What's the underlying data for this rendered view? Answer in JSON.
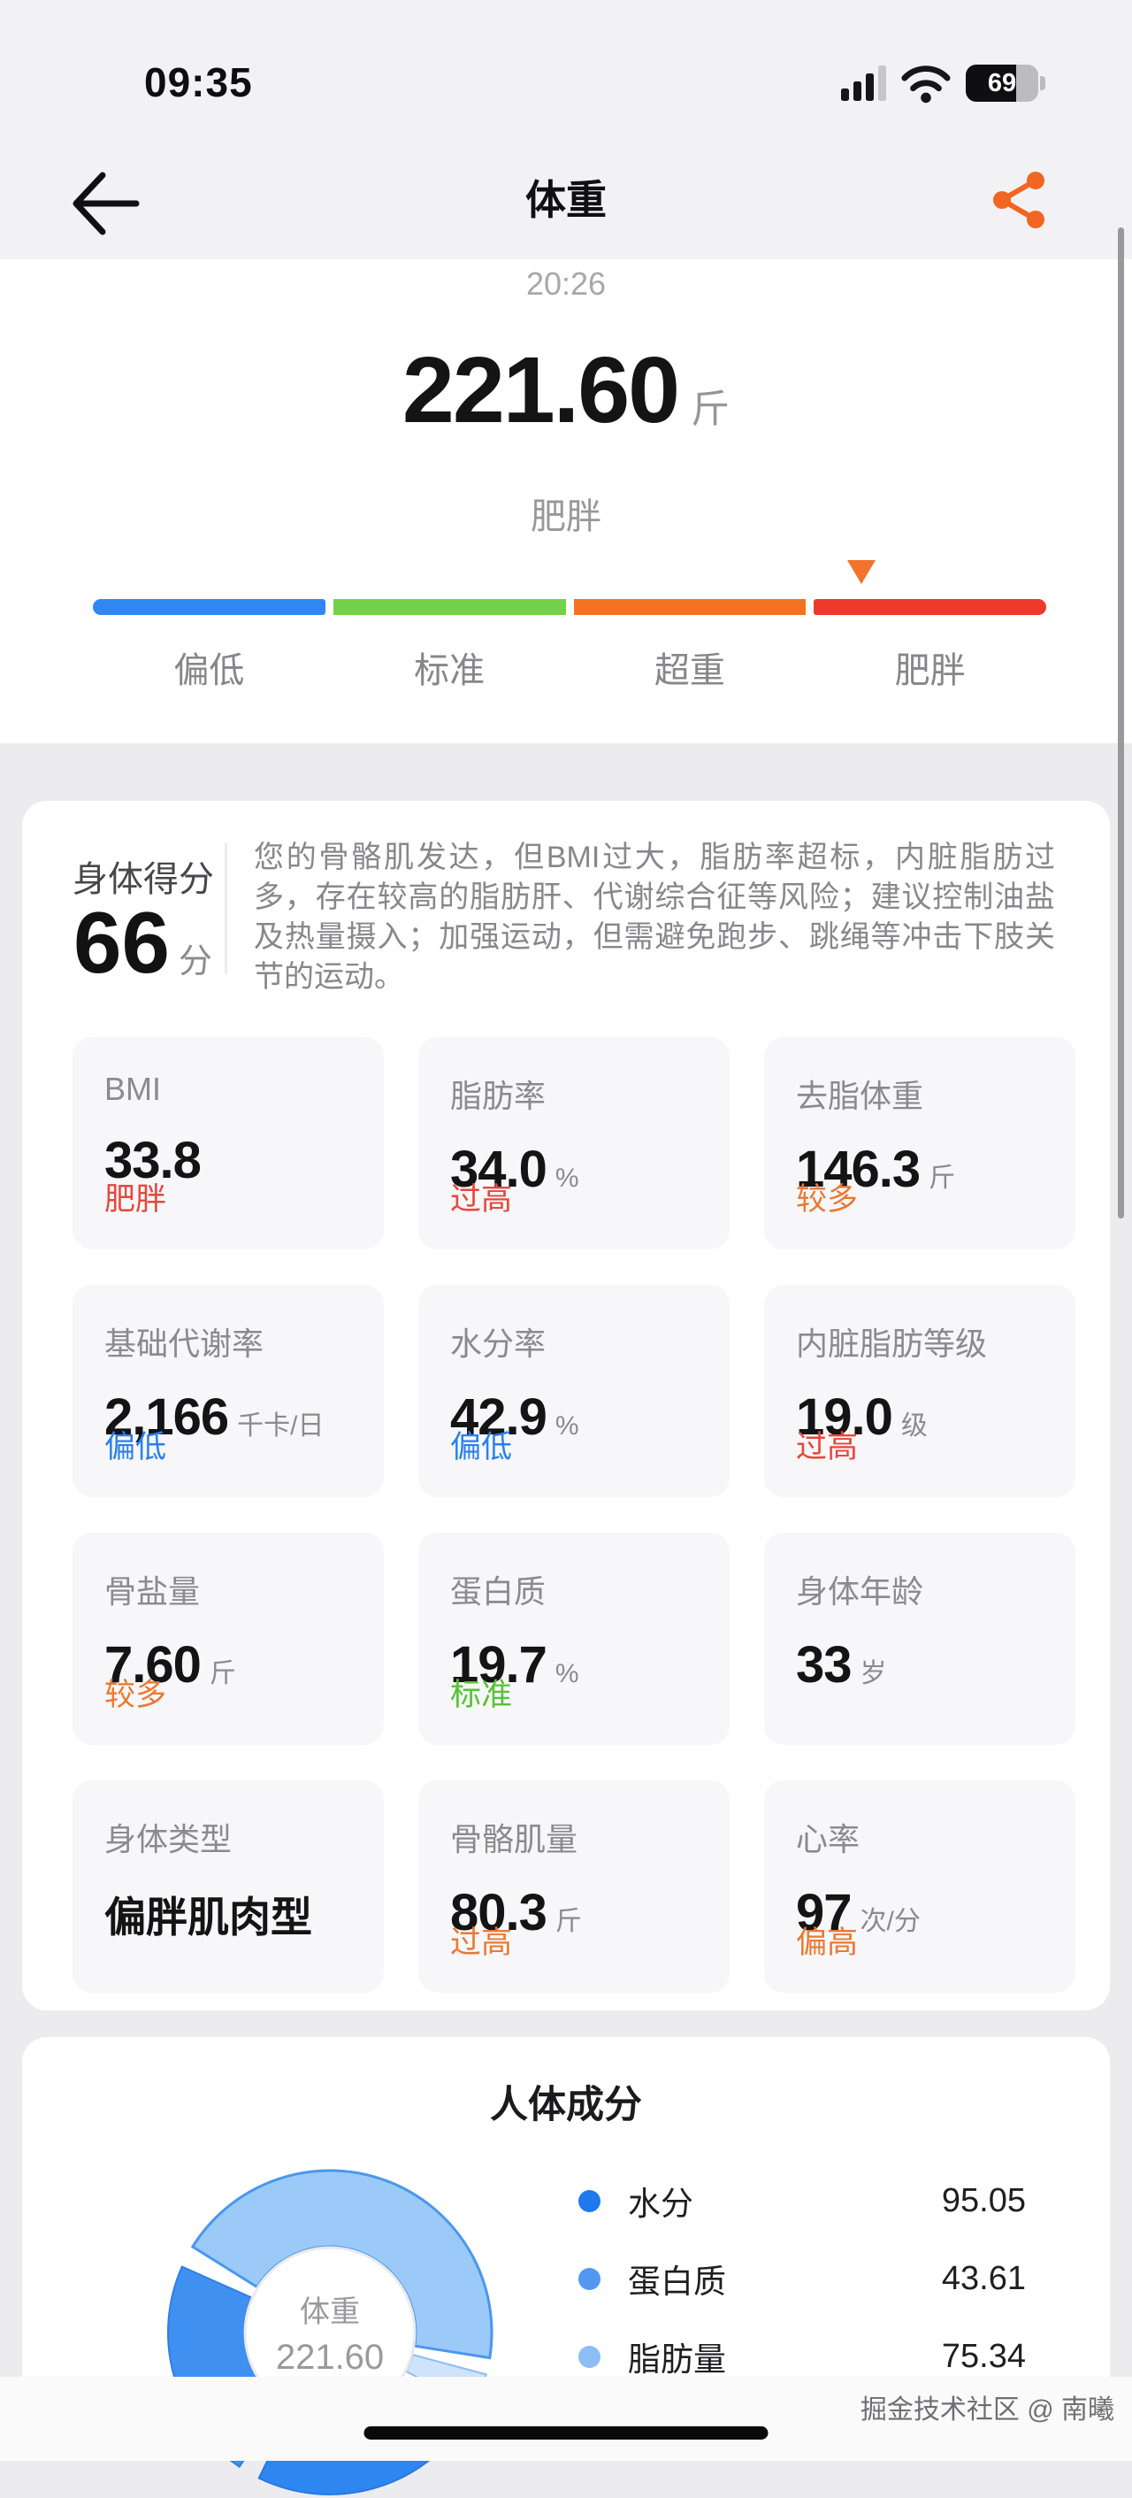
{
  "status_bar": {
    "time": "09:35",
    "battery_percent": 69
  },
  "header": {
    "title": "体重"
  },
  "hero": {
    "measure_time": "20:26",
    "weight_value": "221.60",
    "weight_unit": "斤",
    "category": "肥胖",
    "scale": {
      "segments": [
        {
          "label": "偏低",
          "color": "#2e87f2"
        },
        {
          "label": "标准",
          "color": "#74d14a"
        },
        {
          "label": "超重",
          "color": "#f4731f"
        },
        {
          "label": "肥胖",
          "color": "#ee392b"
        }
      ],
      "marker_color": "#f3722c",
      "marker_fraction": 0.806
    }
  },
  "score_card": {
    "score_label": "身体得分",
    "score_value": "66",
    "score_unit": "分",
    "description": "您的骨骼肌发达，但BMI过大，脂肪率超标，内脏脂肪过多，存在较高的脂肪肝、代谢综合征等风险；建议控制油盐及热量摄入；加强运动，但需避免跑步、跳绳等冲击下肢关节的运动。"
  },
  "metrics": [
    {
      "label": "BMI",
      "value": "33.8",
      "unit": "",
      "status": "肥胖",
      "status_color": "#e8473c"
    },
    {
      "label": "脂肪率",
      "value": "34.0",
      "unit": "%",
      "status": "过高",
      "status_color": "#e8473c"
    },
    {
      "label": "去脂体重",
      "value": "146.3",
      "unit": "斤",
      "status": "较多",
      "status_color": "#e87a33"
    },
    {
      "label": "基础代谢率",
      "value": "2,166",
      "unit": "千卡/日",
      "status": "偏低",
      "status_color": "#2a7fee"
    },
    {
      "label": "水分率",
      "value": "42.9",
      "unit": "%",
      "status": "偏低",
      "status_color": "#2a7fee"
    },
    {
      "label": "内脏脂肪等级",
      "value": "19.0",
      "unit": "级",
      "status": "过高",
      "status_color": "#e8473c"
    },
    {
      "label": "骨盐量",
      "value": "7.60",
      "unit": "斤",
      "status": "较多",
      "status_color": "#e87a33"
    },
    {
      "label": "蛋白质",
      "value": "19.7",
      "unit": "%",
      "status": "标准",
      "status_color": "#55c332"
    },
    {
      "label": "身体年龄",
      "value": "33",
      "unit": "岁",
      "status": "",
      "status_color": ""
    },
    {
      "label": "身体类型",
      "value": "偏胖肌肉型",
      "unit": "",
      "status": "",
      "status_color": "",
      "wide_value": true
    },
    {
      "label": "骨骼肌量",
      "value": "80.3",
      "unit": "斤",
      "status": "过高",
      "status_color": "#e87a33"
    },
    {
      "label": "心率",
      "value": "97",
      "unit": "次/分",
      "status": "偏高",
      "status_color": "#e87a33"
    }
  ],
  "body_composition": {
    "title": "人体成分",
    "center_label": "体重",
    "center_value": "221.60",
    "legend": [
      {
        "label": "水分",
        "value": "95.05",
        "dot_color": "#1e79ef"
      },
      {
        "label": "蛋白质",
        "value": "43.61",
        "dot_color": "#5098f2"
      },
      {
        "label": "脂肪量",
        "value": "75.34",
        "dot_color": "#8cbdf5"
      }
    ],
    "chart_segments": [
      {
        "from": -58,
        "to": 99,
        "fill": "#9ccaf8",
        "stroke": "#4a97ee",
        "sw": 3
      },
      {
        "from": 105,
        "to": 117,
        "fill": "#cfe4fb",
        "stroke": "#8cbdf5",
        "sw": 2
      },
      {
        "from": 123,
        "to": 206,
        "fill": "#2e86f0",
        "stroke": "#2679e3",
        "sw": 2
      },
      {
        "from": 214,
        "to": 294,
        "fill": "#3f90f1",
        "stroke": "#2f7fe6",
        "sw": 2
      }
    ]
  },
  "footer": {
    "watermark": "掘金技术社区 @ 南曦"
  }
}
